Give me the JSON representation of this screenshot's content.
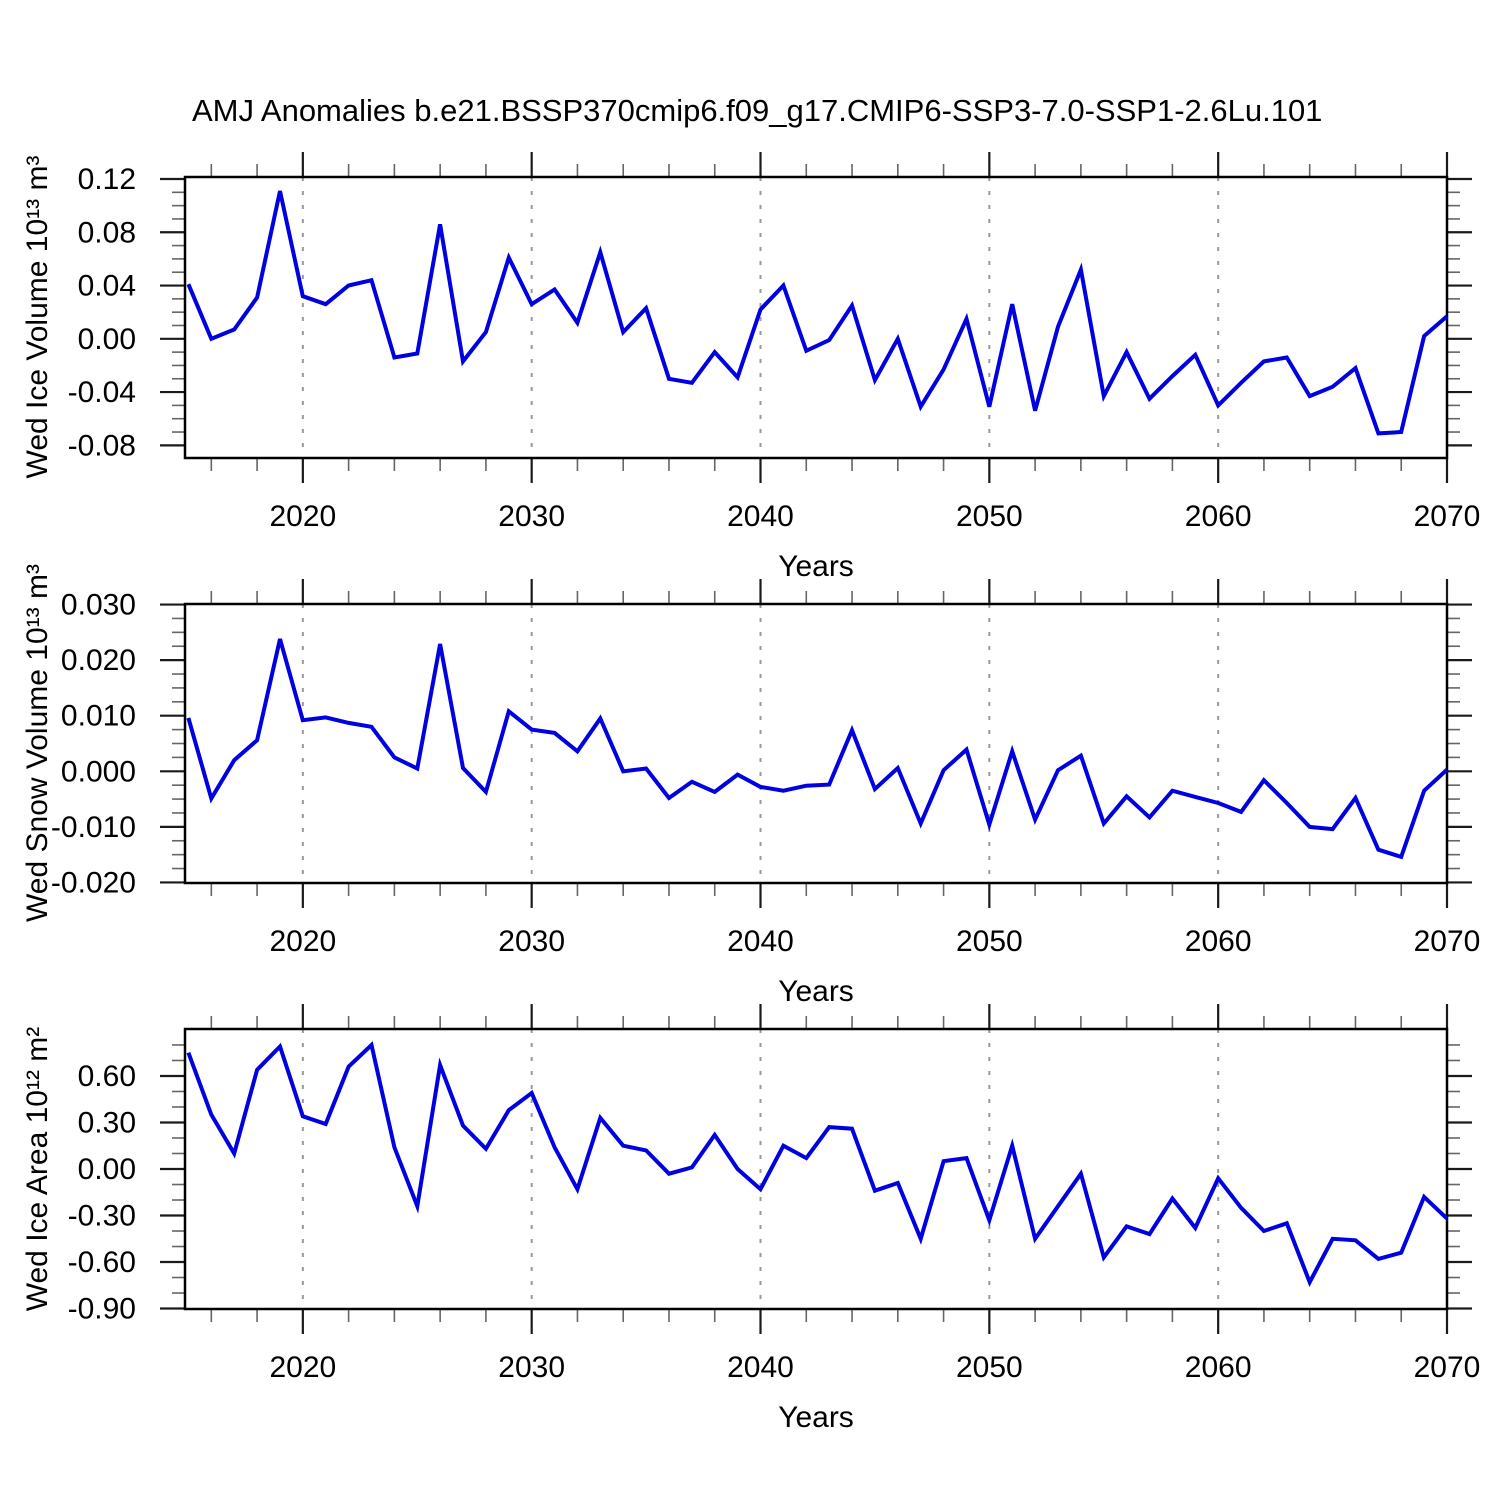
{
  "title": "AMJ Anomalies b.e21.BSSP370cmip6.f09_g17.CMIP6-SSP3-7.0-SSP1-2.6Lu.101",
  "chart_data": {
    "type": "line",
    "title": "AMJ Anomalies b.e21.BSSP370cmip6.f09_g17.CMIP6-SSP3-7.0-SSP1-2.6Lu.101",
    "x_label": "Years",
    "line_color": "#0000e0",
    "grid_color": "#999999",
    "xlim": [
      2014.85,
      2070
    ],
    "x_major_ticks": [
      2020,
      2030,
      2040,
      2050,
      2060,
      2070
    ],
    "x_tick_labels": [
      "2020",
      "2030",
      "2040",
      "2050",
      "2060",
      "2070"
    ],
    "grid_years": [
      2020,
      2030,
      2040,
      2050,
      2060
    ],
    "x_minor_tick_years": [
      2016,
      2018,
      2022,
      2024,
      2026,
      2028,
      2032,
      2034,
      2036,
      2038,
      2042,
      2044,
      2046,
      2048,
      2052,
      2054,
      2056,
      2058,
      2062,
      2064,
      2066,
      2068
    ],
    "x": [
      2015,
      2016,
      2017,
      2018,
      2019,
      2020,
      2021,
      2022,
      2023,
      2024,
      2025,
      2026,
      2027,
      2028,
      2029,
      2030,
      2031,
      2032,
      2033,
      2034,
      2035,
      2036,
      2037,
      2038,
      2039,
      2040,
      2041,
      2042,
      2043,
      2044,
      2045,
      2046,
      2047,
      2048,
      2049,
      2050,
      2051,
      2052,
      2053,
      2054,
      2055,
      2056,
      2057,
      2058,
      2059,
      2060,
      2061,
      2062,
      2063,
      2064,
      2065,
      2066,
      2067,
      2068,
      2069,
      2070
    ],
    "panels": [
      {
        "name": "ice-volume",
        "ylabel": "Wed Ice Volume 10¹³ m³",
        "ylim": [
          -0.0895,
          0.1215
        ],
        "y_major_ticks": [
          0.12,
          0.08,
          0.04,
          0.0,
          -0.04,
          -0.08
        ],
        "y_tick_labels": [
          "0.12",
          "0.08",
          "0.04",
          "0.00",
          "-0.04",
          "-0.08"
        ],
        "y_minor_step": 0.01,
        "values": [
          0.041,
          0.0,
          0.007,
          0.031,
          0.111,
          0.032,
          0.026,
          0.04,
          0.044,
          -0.014,
          -0.011,
          0.086,
          -0.017,
          0.005,
          0.061,
          0.026,
          0.037,
          0.012,
          0.065,
          0.005,
          0.023,
          -0.03,
          -0.033,
          -0.01,
          -0.029,
          0.022,
          0.04,
          -0.009,
          -0.001,
          0.025,
          -0.031,
          0.0,
          -0.051,
          -0.023,
          0.015,
          -0.051,
          0.026,
          -0.054,
          0.009,
          0.052,
          -0.043,
          -0.01,
          -0.045,
          -0.028,
          -0.012,
          -0.05,
          -0.033,
          -0.017,
          -0.014,
          -0.043,
          -0.036,
          -0.022,
          -0.071,
          -0.07,
          0.002,
          0.017
        ]
      },
      {
        "name": "snow-volume",
        "ylabel": "Wed Snow Volume 10¹³ m³",
        "ylim": [
          -0.0201,
          0.0301
        ],
        "y_major_ticks": [
          0.03,
          0.02,
          0.01,
          0.0,
          -0.01,
          -0.02
        ],
        "y_tick_labels": [
          "0.030",
          "0.020",
          "0.010",
          "0.000",
          "-0.010",
          "-0.020"
        ],
        "y_minor_step": 0.0025,
        "values": [
          0.0096,
          -0.0049,
          0.002,
          0.0056,
          0.0238,
          0.0092,
          0.0097,
          0.0087,
          0.008,
          0.0025,
          0.0005,
          0.0229,
          0.0006,
          -0.0037,
          0.0108,
          0.0075,
          0.0069,
          0.0036,
          0.0095,
          0.0,
          0.0005,
          -0.0048,
          -0.0019,
          -0.0037,
          -0.0006,
          -0.0028,
          -0.0035,
          -0.0026,
          -0.0024,
          0.0074,
          -0.0032,
          0.0006,
          -0.0094,
          0.0002,
          0.0039,
          -0.0096,
          0.0036,
          -0.0087,
          0.0002,
          0.0028,
          -0.0094,
          -0.0045,
          -0.0083,
          -0.0035,
          -0.0046,
          -0.0057,
          -0.0073,
          -0.0016,
          -0.0057,
          -0.01,
          -0.0104,
          -0.0048,
          -0.0141,
          -0.0154,
          -0.0035,
          0.0003
        ]
      },
      {
        "name": "ice-area",
        "ylabel": "Wed Ice Area 10¹² m²",
        "ylim": [
          -0.903,
          0.903
        ],
        "y_major_ticks": [
          0.6,
          0.3,
          0.0,
          -0.3,
          -0.6,
          -0.9
        ],
        "y_tick_labels": [
          "0.60",
          "0.30",
          "0.00",
          "-0.30",
          "-0.60",
          "-0.90"
        ],
        "y_minor_step": 0.1,
        "values": [
          0.75,
          0.35,
          0.1,
          0.64,
          0.79,
          0.34,
          0.29,
          0.66,
          0.8,
          0.14,
          -0.24,
          0.67,
          0.28,
          0.13,
          0.38,
          0.49,
          0.14,
          -0.13,
          0.33,
          0.15,
          0.12,
          -0.03,
          0.01,
          0.22,
          0.0,
          -0.13,
          0.15,
          0.07,
          0.27,
          0.26,
          -0.14,
          -0.09,
          -0.45,
          0.05,
          0.07,
          -0.33,
          0.15,
          -0.45,
          -0.24,
          -0.03,
          -0.57,
          -0.37,
          -0.42,
          -0.19,
          -0.38,
          -0.06,
          -0.25,
          -0.4,
          -0.35,
          -0.73,
          -0.45,
          -0.46,
          -0.58,
          -0.54,
          -0.18,
          -0.32
        ]
      }
    ]
  }
}
